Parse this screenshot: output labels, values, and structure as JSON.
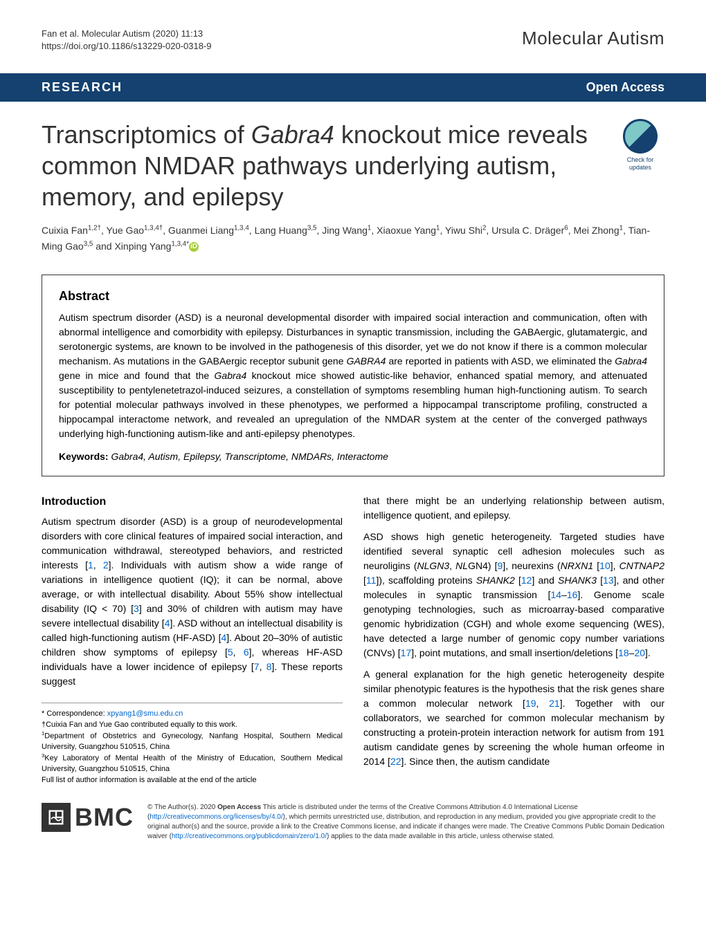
{
  "citation": {
    "line1": "Fan et al. Molecular Autism         (2020) 11:13",
    "line2": "https://doi.org/10.1186/s13229-020-0318-9"
  },
  "journal_name": "Molecular Autism",
  "header": {
    "left": "RESEARCH",
    "right": "Open Access",
    "bg_color": "#14416f",
    "text_color": "#ffffff"
  },
  "check_updates": {
    "line1": "Check for",
    "line2": "updates"
  },
  "title_html": "Transcriptomics of <em>Gabra4</em> knockout mice reveals common NMDAR pathways underlying autism, memory, and epilepsy",
  "authors_html": "Cuixia Fan<sup>1,2†</sup>, Yue Gao<sup>1,3,4†</sup>, Guanmei Liang<sup>1,3,4</sup>, Lang Huang<sup>3,5</sup>, Jing Wang<sup>1</sup>, Xiaoxue Yang<sup>1</sup>, Yiwu Shi<sup>2</sup>, Ursula C. Dräger<sup>6</sup>, Mei Zhong<sup>1</sup>, Tian-Ming Gao<sup>3,5</sup> and Xinping Yang<sup>1,3,4*</sup>",
  "abstract": {
    "heading": "Abstract",
    "text_html": "Autism spectrum disorder (ASD) is a neuronal developmental disorder with impaired social interaction and communication, often with abnormal intelligence and comorbidity with epilepsy. Disturbances in synaptic transmission, including the GABAergic, glutamatergic, and serotonergic systems, are known to be involved in the pathogenesis of this disorder, yet we do not know if there is a common molecular mechanism. As mutations in the GABAergic receptor subunit gene <em>GABRA4</em> are reported in patients with ASD, we eliminated the <em>Gabra4</em> gene in mice and found that the <em>Gabra4</em> knockout mice showed autistic-like behavior, enhanced spatial memory, and attenuated susceptibility to pentylenetetrazol-induced seizures, a constellation of symptoms resembling human high-functioning autism. To search for potential molecular pathways involved in these phenotypes, we performed a hippocampal transcriptome profiling, constructed a hippocampal interactome network, and revealed an upregulation of the NMDAR system at the center of the converged pathways underlying high-functioning autism-like and anti-epilepsy phenotypes.",
    "keywords_label": "Keywords:",
    "keywords_text": " Gabra4, Autism, Epilepsy, Transcriptome, NMDARs, Interactome"
  },
  "intro": {
    "heading": "Introduction",
    "left_col_html": "Autism spectrum disorder (ASD) is a group of neurodevelopmental disorders with core clinical features of impaired social interaction, and communication withdrawal, stereotyped behaviors, and restricted interests [<span class=\"ref\">1</span>, <span class=\"ref\">2</span>]. Individuals with autism show a wide range of variations in intelligence quotient (IQ); it can be normal, above average, or with intellectual disability. About 55% show intellectual disability (IQ &lt; 70) [<span class=\"ref\">3</span>] and 30% of children with autism may have severe intellectual disability [<span class=\"ref\">4</span>]. ASD without an intellectual disability is called high-functioning autism (HF-ASD) [<span class=\"ref\">4</span>]. About 20–30% of autistic children show symptoms of epilepsy [<span class=\"ref\">5</span>, <span class=\"ref\">6</span>], whereas HF-ASD individuals have a lower incidence of epilepsy [<span class=\"ref\">7</span>, <span class=\"ref\">8</span>]. These reports suggest",
    "right_col_p1": "that there might be an underlying relationship between autism, intelligence quotient, and epilepsy.",
    "right_col_p2_html": "ASD shows high genetic heterogeneity. Targeted studies have identified several synaptic cell adhesion molecules such as neuroligins (<em>NLGN3</em>, <em>NL</em>GN4) [<span class=\"ref\">9</span>], neurexins (<em>NRXN1</em> [<span class=\"ref\">10</span>], <em>CNTNAP2</em> [<span class=\"ref\">11</span>]), scaffolding proteins <em>SHANK2</em> [<span class=\"ref\">12</span>] and <em>SHANK3</em> [<span class=\"ref\">13</span>], and other molecules in synaptic transmission [<span class=\"ref\">14</span>–<span class=\"ref\">16</span>]. Genome scale genotyping technologies, such as microarray-based comparative genomic hybridization (CGH) and whole exome sequencing (WES), have detected a large number of genomic copy number variations (CNVs) [<span class=\"ref\">17</span>], point mutations, and small insertion/deletions [<span class=\"ref\">18</span>–<span class=\"ref\">20</span>].",
    "right_col_p3_html": "A general explanation for the high genetic heterogeneity despite similar phenotypic features is the hypothesis that the risk genes share a common molecular network [<span class=\"ref\">19</span>, <span class=\"ref\">21</span>]. Together with our collaborators, we searched for common molecular mechanism by constructing a protein-protein interaction network for autism from 191 autism candidate genes by screening the whole human orfeome in 2014 [<span class=\"ref\">22</span>]. Since then, the autism candidate"
  },
  "footnotes": {
    "corr": "* Correspondence: ",
    "email": "xpyang1@smu.edu.cn",
    "contrib": "†Cuixia Fan and Yue Gao contributed equally to this work.",
    "aff1": "1Department of Obstetrics and Gynecology, Nanfang Hospital, Southern Medical University, Guangzhou 510515, China",
    "aff3": "3Key Laboratory of Mental Health of the Ministry of Education, Southern Medical University, Guangzhou 510515, China",
    "full": "Full list of author information is available at the end of the article"
  },
  "publisher": {
    "logo_text": "BMC"
  },
  "license": {
    "text_html": "© The Author(s). 2020 <b>Open Access</b> This article is distributed under the terms of the Creative Commons Attribution 4.0 International License (<span class=\"license-link\">http://creativecommons.org/licenses/by/4.0/</span>), which permits unrestricted use, distribution, and reproduction in any medium, provided you give appropriate credit to the original author(s) and the source, provide a link to the Creative Commons license, and indicate if changes were made. The Creative Commons Public Domain Dedication waiver (<span class=\"license-link\">http://creativecommons.org/publicdomain/zero/1.0/</span>) applies to the data made available in this article, unless otherwise stated."
  },
  "colors": {
    "header_bg": "#14416f",
    "header_text": "#ffffff",
    "link": "#0066cc",
    "orcid": "#a6ce39",
    "body_text": "#333333",
    "background": "#ffffff"
  },
  "typography": {
    "title_size_pt": 27,
    "body_size_pt": 10.5,
    "abstract_heading_size_pt": 13,
    "section_heading_size_pt": 12,
    "footnote_size_pt": 8,
    "license_size_pt": 7.5
  }
}
